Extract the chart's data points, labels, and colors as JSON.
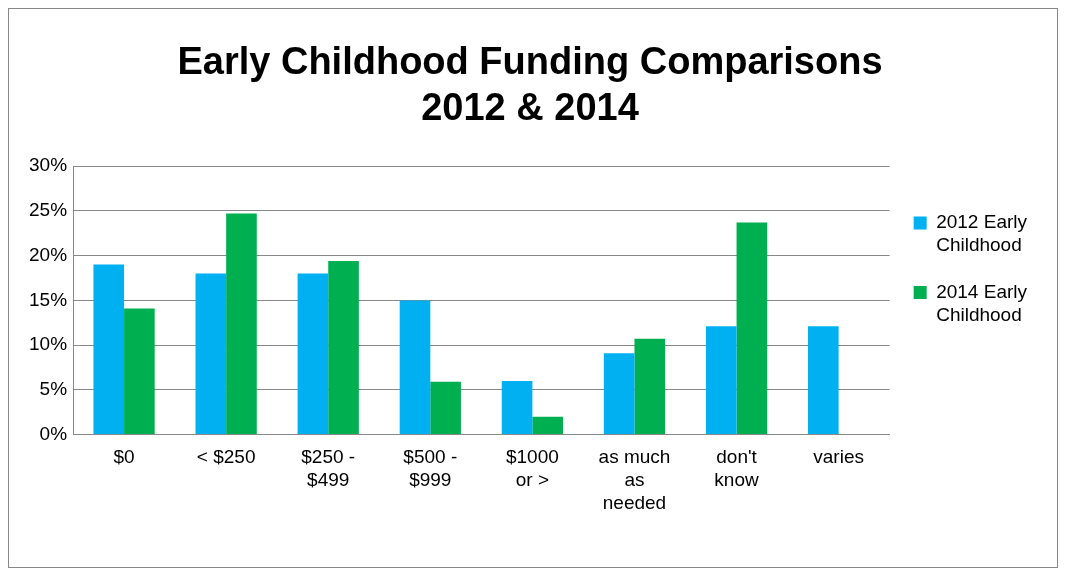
{
  "chart_data": {
    "type": "bar",
    "title": "Early Childhood Funding Comparisons 2012 & 2014",
    "categories": [
      "$0",
      "< $250",
      "$250 - $499",
      "$500 - $999",
      "$1000 or >",
      "as much as needed",
      "don't know",
      "varies"
    ],
    "series": [
      {
        "name": "2012 Early Childhood",
        "color": "#00b0f0",
        "values": [
          19,
          18,
          18,
          15,
          6,
          9.1,
          12.1,
          12.1
        ]
      },
      {
        "name": "2014 Early Childhood",
        "color": "#00b050",
        "values": [
          14.1,
          24.7,
          19.4,
          5.9,
          2,
          10.7,
          23.7,
          null
        ]
      }
    ],
    "ylim": [
      0,
      30
    ],
    "yticks": [
      {
        "value": 0,
        "label": "0%"
      },
      {
        "value": 5,
        "label": "5%"
      },
      {
        "value": 10,
        "label": "10%"
      },
      {
        "value": 15,
        "label": "15%"
      },
      {
        "value": 20,
        "label": "20%"
      },
      {
        "value": 25,
        "label": "25%"
      },
      {
        "value": 30,
        "label": "30%"
      }
    ],
    "grid": "y",
    "legend": "right"
  }
}
